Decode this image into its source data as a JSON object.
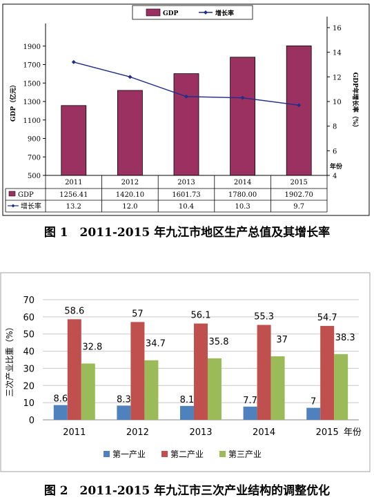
{
  "chart_data": [
    {
      "type": "bar",
      "categories": [
        "2011",
        "2012",
        "2013",
        "2014",
        "2015"
      ],
      "series": [
        {
          "name": "GDP",
          "type": "bar",
          "axis": "left",
          "color": "#9B3160",
          "values": [
            1256.41,
            1420.1,
            1601.73,
            1780.0,
            1902.7
          ],
          "value_labels": [
            "1256.41",
            "1420.10",
            "1601.73",
            "1780.00",
            "1902.70"
          ]
        },
        {
          "name": "增长率",
          "type": "line",
          "axis": "right",
          "color": "#1F2E8C",
          "values": [
            13.2,
            12.0,
            10.4,
            10.3,
            9.7
          ],
          "value_labels": [
            "13.2",
            "12.0",
            "10.4",
            "10.3",
            "9.7"
          ]
        }
      ],
      "ylabel": "GDP（亿元）",
      "y2label": "GDP年增长率（%）",
      "xlabel_unit": "年份",
      "ylim": [
        500,
        2100
      ],
      "yticks": [
        "500",
        "700",
        "900",
        "1100",
        "1300",
        "1500",
        "1700",
        "1900"
      ],
      "y2lim": [
        4,
        16
      ],
      "y2ticks": [
        "4",
        "6",
        "8",
        "10",
        "12",
        "14",
        "16"
      ],
      "legend": "top-center",
      "grid": false,
      "data_table": true
    },
    {
      "type": "bar",
      "categories": [
        "2011",
        "2012",
        "2013",
        "2014",
        "2015"
      ],
      "series": [
        {
          "name": "第一产业",
          "color": "#4F81BD",
          "values": [
            8.6,
            8.3,
            8.1,
            7.7,
            7
          ],
          "value_labels": [
            "8.6",
            "8.3",
            "8.1",
            "7.7",
            "7"
          ]
        },
        {
          "name": "第二产业",
          "color": "#C0504D",
          "values": [
            58.6,
            57,
            56.1,
            55.3,
            54.7
          ],
          "value_labels": [
            "58.6",
            "57",
            "56.1",
            "55.3",
            "54.7"
          ]
        },
        {
          "name": "第三产业",
          "color": "#9BBB59",
          "values": [
            32.8,
            34.7,
            35.8,
            37,
            38.3
          ],
          "value_labels": [
            "32.8",
            "34.7",
            "35.8",
            "37",
            "38.3"
          ]
        }
      ],
      "ylabel": "三次产业比重（%）",
      "xlabel_unit": "年份",
      "ylim": [
        0,
        70
      ],
      "yticks": [
        "0",
        "10",
        "20",
        "30",
        "40",
        "50",
        "60",
        "70"
      ],
      "legend": "bottom",
      "grid": true
    }
  ],
  "captions": {
    "fig1": "图 1　2011-2015 年九江市地区生产总值及其增长率",
    "fig2": "图 2　2011-2015 年九江市三次产业结构的调整优化"
  }
}
